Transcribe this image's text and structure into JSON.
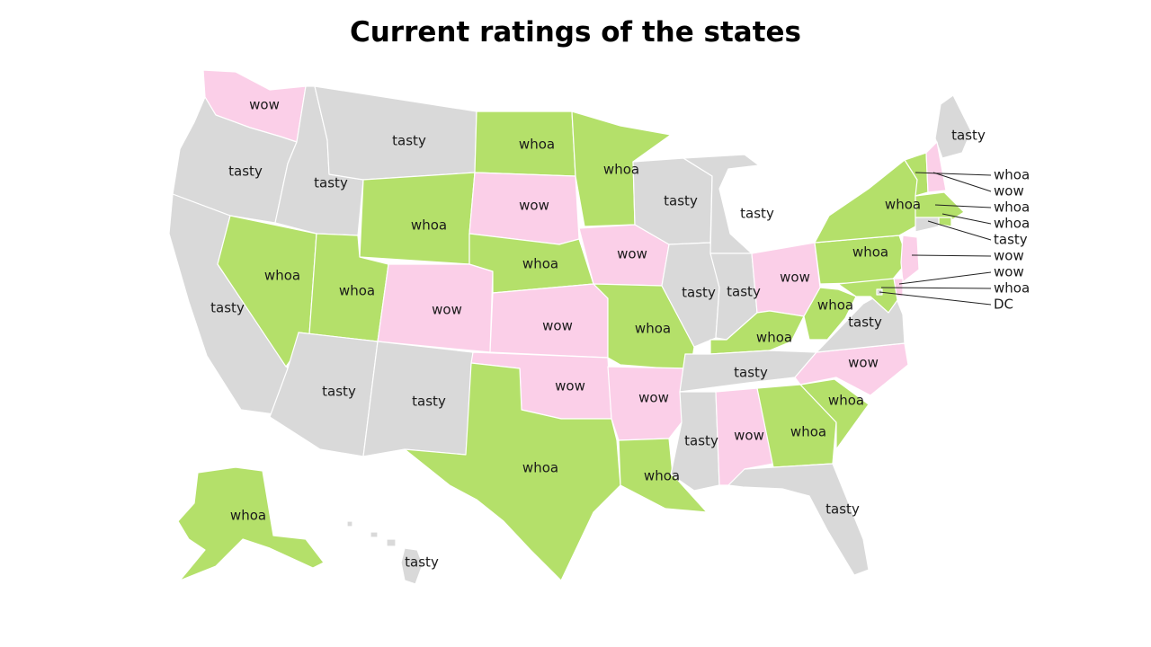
{
  "title": "Current ratings of the states",
  "colors": {
    "wow": "#fbcfe8",
    "whoa": "#b4e06a",
    "tasty": "#d9d9d9",
    "background": "#ffffff"
  },
  "states": {
    "WA": "wow",
    "OR": "tasty",
    "CA": "tasty",
    "ID": "tasty",
    "NV": "whoa",
    "MT": "tasty",
    "WY": "whoa",
    "UT": "whoa",
    "AZ": "tasty",
    "CO": "wow",
    "NM": "tasty",
    "ND": "whoa",
    "SD": "wow",
    "NE": "whoa",
    "KS": "wow",
    "OK": "wow",
    "TX": "whoa",
    "MN": "whoa",
    "IA": "wow",
    "MO": "whoa",
    "AR": "wow",
    "LA": "whoa",
    "WI": "tasty",
    "IL": "tasty",
    "MI": "tasty",
    "IN": "tasty",
    "OH": "wow",
    "KY": "whoa",
    "TN": "tasty",
    "MS": "tasty",
    "AL": "wow",
    "GA": "whoa",
    "FL": "tasty",
    "SC": "whoa",
    "NC": "wow",
    "VA": "tasty",
    "WV": "whoa",
    "PA": "whoa",
    "NY": "whoa",
    "ME": "tasty",
    "AK": "whoa",
    "HI": "tasty",
    "VT": "whoa",
    "NH": "wow",
    "MA": "whoa",
    "RI": "whoa",
    "CT": "tasty",
    "NJ": "wow",
    "DE": "wow",
    "MD": "whoa",
    "DC": "DC"
  },
  "callouts": [
    "whoa",
    "wow",
    "whoa",
    "whoa",
    "tasty",
    "wow",
    "wow",
    "whoa",
    "DC"
  ]
}
